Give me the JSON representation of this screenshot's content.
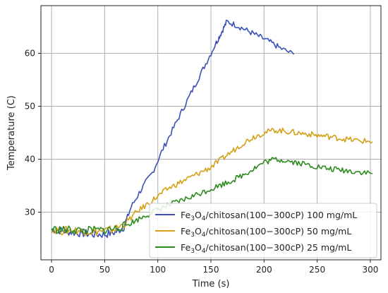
{
  "chart_data": {
    "type": "line",
    "title": "",
    "xlabel": "Time (s)",
    "ylabel": "Temperature (C)",
    "xlim": [
      -10,
      310
    ],
    "ylim": [
      21,
      69
    ],
    "xticks": [
      0,
      50,
      100,
      150,
      200,
      250,
      300
    ],
    "yticks": [
      30,
      40,
      50,
      60
    ],
    "grid": true,
    "legend_position": "lower-right",
    "series": [
      {
        "name": "Fe3O4/chitosan(100−300cP) 100 mg/mL",
        "legend_parts": [
          "Fe",
          "3",
          "O",
          "4",
          "/chitosan(100−300cP) 100 mg/mL"
        ],
        "color": "#3b4fb8",
        "x": [
          0,
          10,
          20,
          30,
          40,
          50,
          60,
          68,
          75,
          85,
          95,
          105,
          115,
          125,
          135,
          145,
          155,
          160,
          165,
          175,
          185,
          195,
          205,
          215,
          228
        ],
        "y": [
          26.8,
          26.5,
          26.2,
          26.0,
          25.8,
          25.8,
          26.2,
          27.2,
          31.0,
          34.5,
          37.5,
          42.0,
          46.0,
          50.0,
          54.0,
          58.0,
          62.0,
          64.0,
          66.0,
          65.2,
          64.2,
          63.2,
          62.2,
          61.0,
          59.8
        ]
      },
      {
        "name": "Fe3O4/chitosan(100−300cP) 50 mg/mL",
        "legend_parts": [
          "Fe",
          "3",
          "O",
          "4",
          "/chitosan(100−300cP) 50 mg/mL"
        ],
        "color": "#d4a017",
        "x": [
          0,
          10,
          20,
          30,
          40,
          50,
          60,
          70,
          80,
          90,
          100,
          110,
          120,
          130,
          140,
          150,
          160,
          170,
          180,
          190,
          200,
          210,
          220,
          230,
          240,
          250,
          260,
          270,
          280,
          290,
          302
        ],
        "y": [
          26.8,
          26.5,
          26.6,
          26.4,
          26.3,
          26.5,
          26.8,
          28.0,
          30.0,
          31.5,
          33.0,
          34.5,
          35.5,
          36.5,
          37.5,
          38.5,
          40.0,
          41.5,
          43.0,
          44.2,
          45.0,
          45.5,
          45.3,
          45.0,
          44.8,
          44.5,
          44.3,
          44.0,
          43.7,
          43.5,
          43.3
        ]
      },
      {
        "name": "Fe3O4/chitosan(100−300cP) 25 mg/mL",
        "legend_parts": [
          "Fe",
          "3",
          "O",
          "4",
          "/chitosan(100−300cP) 25 mg/mL"
        ],
        "color": "#2e8b1f",
        "x": [
          0,
          10,
          20,
          30,
          40,
          50,
          60,
          70,
          80,
          90,
          100,
          110,
          120,
          130,
          140,
          150,
          160,
          170,
          180,
          190,
          200,
          210,
          220,
          230,
          240,
          250,
          260,
          270,
          280,
          290,
          302
        ],
        "y": [
          26.8,
          26.6,
          26.7,
          26.5,
          26.6,
          26.6,
          26.9,
          27.5,
          28.5,
          29.5,
          30.5,
          31.3,
          32.0,
          32.8,
          33.6,
          34.4,
          35.2,
          36.0,
          37.0,
          38.2,
          39.4,
          40.0,
          39.8,
          39.4,
          39.0,
          38.6,
          38.2,
          38.0,
          37.8,
          37.6,
          37.3
        ]
      }
    ]
  }
}
